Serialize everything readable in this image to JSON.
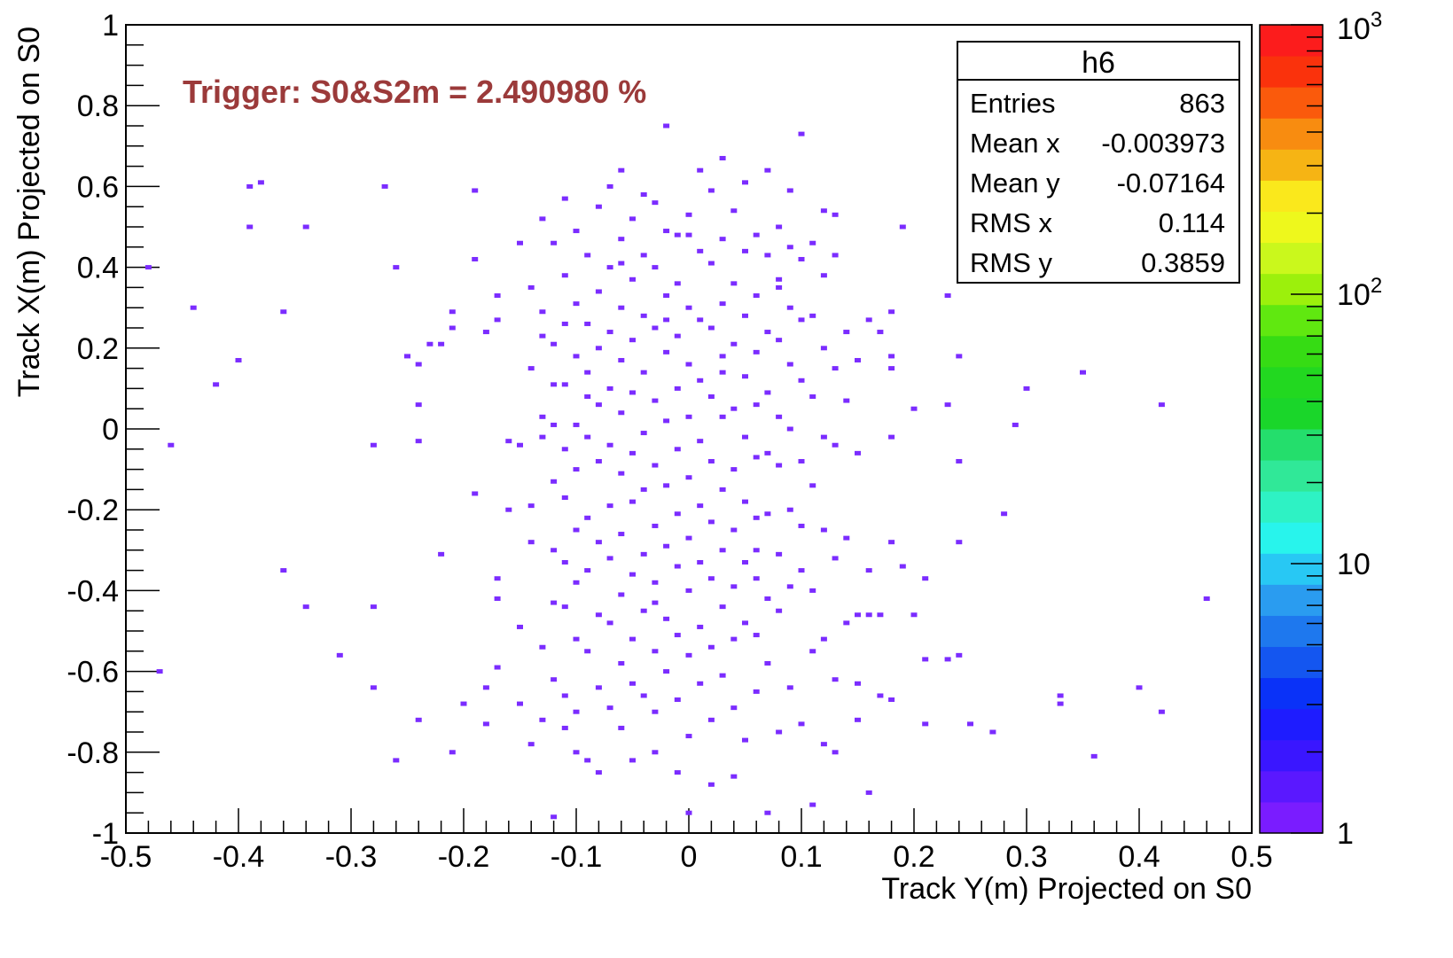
{
  "chart_data": {
    "type": "heatmap",
    "title": "",
    "xlabel": "Track Y(m) Projected on S0",
    "ylabel": "Track X(m) Projected on S0",
    "xlim": [
      -0.5,
      0.5
    ],
    "ylim": [
      -1,
      1
    ],
    "x_ticks": [
      "-0.5",
      "-0.4",
      "-0.3",
      "-0.2",
      "-0.1",
      "0",
      "0.1",
      "0.2",
      "0.3",
      "0.4",
      "0.5"
    ],
    "x_tick_values": [
      -0.5,
      -0.4,
      -0.3,
      -0.2,
      -0.1,
      0,
      0.1,
      0.2,
      0.3,
      0.4,
      0.5
    ],
    "y_ticks": [
      "-1",
      "-0.8",
      "-0.6",
      "-0.4",
      "-0.2",
      "0",
      "0.2",
      "0.4",
      "0.6",
      "0.8",
      "1"
    ],
    "y_tick_values": [
      -1,
      -0.8,
      -0.6,
      -0.4,
      -0.2,
      0,
      0.2,
      0.4,
      0.6,
      0.8,
      1
    ],
    "annotation": "Trigger: S0&S2m = 2.490980 %",
    "annotation_color": "#9b3a3a",
    "point_color": "#7b2cff",
    "colorbar": {
      "scale": "log",
      "range": [
        1,
        1000
      ],
      "labels": [
        {
          "value": 1,
          "base": "1",
          "exp": ""
        },
        {
          "value": 10,
          "base": "10",
          "exp": ""
        },
        {
          "value": 100,
          "base": "10",
          "exp": "2"
        },
        {
          "value": 1000,
          "base": "10",
          "exp": "3"
        }
      ],
      "colors": [
        "#7a1cff",
        "#5a18ff",
        "#3a16ff",
        "#1e1cff",
        "#0a32f8",
        "#1456f0",
        "#1e78ee",
        "#2a9cf0",
        "#28c8f4",
        "#28f4ec",
        "#2ef2c4",
        "#30e898",
        "#24de6c",
        "#1ad62a",
        "#22d820",
        "#36dc14",
        "#60e810",
        "#9cf00c",
        "#caf81c",
        "#eef81c",
        "#fae81c",
        "#f6b414",
        "#f88c10",
        "#fa5a0c",
        "#fa320c",
        "#fc1c1c"
      ]
    },
    "stats": {
      "title": "h6",
      "rows": [
        {
          "label": "Entries",
          "value": "863"
        },
        {
          "label": "Mean x",
          "value": "-0.003973"
        },
        {
          "label": "Mean y",
          "value": "-0.07164"
        },
        {
          "label": "RMS x",
          "value": "0.114"
        },
        {
          "label": "RMS y",
          "value": "0.3859"
        }
      ]
    },
    "points": [
      [
        -0.48,
        0.4
      ],
      [
        -0.44,
        0.3
      ],
      [
        -0.42,
        0.11
      ],
      [
        -0.46,
        -0.04
      ],
      [
        -0.47,
        -0.6
      ],
      [
        -0.4,
        0.17
      ],
      [
        -0.39,
        0.6
      ],
      [
        -0.38,
        0.61
      ],
      [
        -0.39,
        0.5
      ],
      [
        -0.36,
        0.29
      ],
      [
        -0.34,
        0.5
      ],
      [
        -0.36,
        -0.35
      ],
      [
        -0.34,
        -0.44
      ],
      [
        -0.31,
        -0.56
      ],
      [
        -0.28,
        -0.04
      ],
      [
        -0.28,
        -0.44
      ],
      [
        -0.28,
        -0.64
      ],
      [
        -0.27,
        0.6
      ],
      [
        -0.26,
        -0.82
      ],
      [
        -0.26,
        0.4
      ],
      [
        -0.25,
        0.18
      ],
      [
        -0.24,
        0.16
      ],
      [
        -0.24,
        0.06
      ],
      [
        -0.24,
        -0.03
      ],
      [
        -0.24,
        -0.72
      ],
      [
        -0.22,
        0.21
      ],
      [
        -0.21,
        0.29
      ],
      [
        -0.21,
        0.25
      ],
      [
        -0.22,
        -0.31
      ],
      [
        -0.21,
        -0.8
      ],
      [
        -0.2,
        -0.68
      ],
      [
        -0.19,
        0.59
      ],
      [
        -0.19,
        -0.16
      ],
      [
        -0.19,
        0.42
      ],
      [
        -0.18,
        -0.64
      ],
      [
        -0.18,
        -0.73
      ],
      [
        -0.18,
        0.24
      ],
      [
        -0.17,
        0.33
      ],
      [
        -0.17,
        0.27
      ],
      [
        -0.17,
        -0.37
      ],
      [
        -0.17,
        -0.42
      ],
      [
        -0.17,
        -0.59
      ],
      [
        -0.16,
        -0.03
      ],
      [
        -0.16,
        -0.2
      ],
      [
        -0.15,
        0.46
      ],
      [
        -0.15,
        -0.04
      ],
      [
        -0.15,
        -0.49
      ],
      [
        -0.15,
        -0.68
      ],
      [
        -0.14,
        0.35
      ],
      [
        -0.14,
        0.15
      ],
      [
        -0.14,
        -0.19
      ],
      [
        -0.14,
        -0.28
      ],
      [
        -0.14,
        -0.78
      ],
      [
        -0.13,
        0.52
      ],
      [
        -0.13,
        0.29
      ],
      [
        -0.13,
        0.23
      ],
      [
        -0.13,
        0.03
      ],
      [
        -0.13,
        -0.02
      ],
      [
        -0.13,
        -0.54
      ],
      [
        -0.13,
        -0.72
      ],
      [
        -0.12,
        0.46
      ],
      [
        -0.12,
        0.21
      ],
      [
        -0.12,
        0.11
      ],
      [
        -0.12,
        0.01
      ],
      [
        -0.12,
        -0.13
      ],
      [
        -0.12,
        -0.3
      ],
      [
        -0.12,
        -0.43
      ],
      [
        -0.12,
        -0.62
      ],
      [
        -0.12,
        -0.96
      ],
      [
        -0.11,
        0.57
      ],
      [
        -0.11,
        0.38
      ],
      [
        -0.11,
        0.26
      ],
      [
        -0.11,
        0.11
      ],
      [
        -0.11,
        -0.05
      ],
      [
        -0.11,
        -0.17
      ],
      [
        -0.11,
        -0.33
      ],
      [
        -0.11,
        -0.44
      ],
      [
        -0.11,
        -0.66
      ],
      [
        -0.11,
        -0.74
      ],
      [
        -0.1,
        0.49
      ],
      [
        -0.1,
        0.31
      ],
      [
        -0.1,
        0.18
      ],
      [
        -0.1,
        0.01
      ],
      [
        -0.1,
        -0.1
      ],
      [
        -0.1,
        -0.25
      ],
      [
        -0.1,
        -0.38
      ],
      [
        -0.1,
        -0.52
      ],
      [
        -0.1,
        -0.7
      ],
      [
        -0.1,
        -0.8
      ],
      [
        -0.09,
        0.43
      ],
      [
        -0.09,
        0.26
      ],
      [
        -0.09,
        0.14
      ],
      [
        -0.09,
        -0.02
      ],
      [
        -0.09,
        -0.22
      ],
      [
        -0.09,
        -0.35
      ],
      [
        -0.09,
        -0.55
      ],
      [
        -0.09,
        -0.82
      ],
      [
        -0.08,
        0.55
      ],
      [
        -0.08,
        0.34
      ],
      [
        -0.08,
        0.2
      ],
      [
        -0.08,
        0.06
      ],
      [
        -0.08,
        -0.08
      ],
      [
        -0.08,
        -0.28
      ],
      [
        -0.08,
        -0.46
      ],
      [
        -0.08,
        -0.64
      ],
      [
        -0.08,
        -0.85
      ],
      [
        -0.07,
        0.6
      ],
      [
        -0.07,
        0.4
      ],
      [
        -0.07,
        0.24
      ],
      [
        -0.07,
        0.1
      ],
      [
        -0.07,
        -0.04
      ],
      [
        -0.07,
        -0.19
      ],
      [
        -0.07,
        -0.32
      ],
      [
        -0.07,
        -0.48
      ],
      [
        -0.07,
        -0.69
      ],
      [
        -0.06,
        0.64
      ],
      [
        -0.06,
        0.47
      ],
      [
        -0.06,
        0.3
      ],
      [
        -0.06,
        0.17
      ],
      [
        -0.06,
        0.04
      ],
      [
        -0.06,
        -0.11
      ],
      [
        -0.06,
        -0.26
      ],
      [
        -0.06,
        -0.41
      ],
      [
        -0.06,
        -0.58
      ],
      [
        -0.06,
        -0.74
      ],
      [
        -0.05,
        0.52
      ],
      [
        -0.05,
        0.37
      ],
      [
        -0.05,
        0.22
      ],
      [
        -0.05,
        0.09
      ],
      [
        -0.05,
        -0.06
      ],
      [
        -0.05,
        -0.18
      ],
      [
        -0.05,
        -0.36
      ],
      [
        -0.05,
        -0.52
      ],
      [
        -0.05,
        -0.63
      ],
      [
        -0.05,
        -0.82
      ],
      [
        -0.04,
        0.58
      ],
      [
        -0.04,
        0.43
      ],
      [
        -0.04,
        0.28
      ],
      [
        -0.04,
        0.14
      ],
      [
        -0.04,
        -0.01
      ],
      [
        -0.04,
        -0.15
      ],
      [
        -0.04,
        -0.31
      ],
      [
        -0.04,
        -0.45
      ],
      [
        -0.04,
        -0.66
      ],
      [
        -0.03,
        0.56
      ],
      [
        -0.03,
        0.4
      ],
      [
        -0.03,
        0.25
      ],
      [
        -0.03,
        0.07
      ],
      [
        -0.03,
        -0.09
      ],
      [
        -0.03,
        -0.24
      ],
      [
        -0.03,
        -0.38
      ],
      [
        -0.03,
        -0.55
      ],
      [
        -0.03,
        -0.7
      ],
      [
        -0.03,
        -0.8
      ],
      [
        -0.02,
        0.75
      ],
      [
        -0.02,
        0.49
      ],
      [
        -0.02,
        0.33
      ],
      [
        -0.02,
        0.19
      ],
      [
        -0.02,
        0.02
      ],
      [
        -0.02,
        -0.14
      ],
      [
        -0.02,
        -0.29
      ],
      [
        -0.02,
        -0.47
      ],
      [
        -0.02,
        -0.6
      ],
      [
        -0.01,
        0.48
      ],
      [
        -0.01,
        0.36
      ],
      [
        -0.01,
        0.23
      ],
      [
        -0.01,
        0.1
      ],
      [
        -0.01,
        -0.05
      ],
      [
        -0.01,
        -0.21
      ],
      [
        -0.01,
        -0.34
      ],
      [
        -0.01,
        -0.51
      ],
      [
        -0.01,
        -0.67
      ],
      [
        -0.01,
        -0.85
      ],
      [
        0.0,
        0.53
      ],
      [
        0.0,
        0.3
      ],
      [
        0.0,
        0.16
      ],
      [
        0.0,
        0.03
      ],
      [
        0.0,
        -0.12
      ],
      [
        0.0,
        -0.27
      ],
      [
        0.0,
        -0.4
      ],
      [
        0.0,
        -0.56
      ],
      [
        0.0,
        -0.76
      ],
      [
        0.0,
        -0.95
      ],
      [
        0.01,
        0.64
      ],
      [
        0.01,
        0.44
      ],
      [
        0.01,
        0.27
      ],
      [
        0.01,
        0.12
      ],
      [
        0.01,
        -0.03
      ],
      [
        0.01,
        -0.19
      ],
      [
        0.01,
        -0.33
      ],
      [
        0.01,
        -0.49
      ],
      [
        0.01,
        -0.63
      ],
      [
        0.02,
        0.59
      ],
      [
        0.02,
        0.41
      ],
      [
        0.02,
        0.25
      ],
      [
        0.02,
        0.08
      ],
      [
        0.02,
        -0.08
      ],
      [
        0.02,
        -0.23
      ],
      [
        0.02,
        -0.37
      ],
      [
        0.02,
        -0.54
      ],
      [
        0.02,
        -0.72
      ],
      [
        0.02,
        -0.88
      ],
      [
        0.03,
        0.67
      ],
      [
        0.03,
        0.47
      ],
      [
        0.03,
        0.31
      ],
      [
        0.03,
        0.18
      ],
      [
        0.03,
        0.03
      ],
      [
        0.03,
        -0.15
      ],
      [
        0.03,
        -0.3
      ],
      [
        0.03,
        -0.44
      ],
      [
        0.03,
        -0.61
      ],
      [
        0.04,
        0.54
      ],
      [
        0.04,
        0.36
      ],
      [
        0.04,
        0.21
      ],
      [
        0.04,
        0.05
      ],
      [
        0.04,
        -0.1
      ],
      [
        0.04,
        -0.25
      ],
      [
        0.04,
        -0.39
      ],
      [
        0.04,
        -0.52
      ],
      [
        0.04,
        -0.69
      ],
      [
        0.04,
        -0.86
      ],
      [
        0.05,
        0.61
      ],
      [
        0.05,
        0.44
      ],
      [
        0.05,
        0.28
      ],
      [
        0.05,
        0.13
      ],
      [
        0.05,
        -0.02
      ],
      [
        0.05,
        -0.18
      ],
      [
        0.05,
        -0.33
      ],
      [
        0.05,
        -0.48
      ],
      [
        0.05,
        -0.77
      ],
      [
        0.06,
        0.48
      ],
      [
        0.06,
        0.33
      ],
      [
        0.06,
        0.19
      ],
      [
        0.06,
        0.06
      ],
      [
        0.06,
        -0.07
      ],
      [
        0.06,
        -0.22
      ],
      [
        0.06,
        -0.37
      ],
      [
        0.06,
        -0.51
      ],
      [
        0.06,
        -0.65
      ],
      [
        0.07,
        0.64
      ],
      [
        0.07,
        0.43
      ],
      [
        0.07,
        0.24
      ],
      [
        0.07,
        0.09
      ],
      [
        0.07,
        -0.06
      ],
      [
        0.07,
        -0.21
      ],
      [
        0.07,
        -0.42
      ],
      [
        0.07,
        -0.58
      ],
      [
        0.07,
        -0.95
      ],
      [
        0.08,
        0.5
      ],
      [
        0.08,
        0.35
      ],
      [
        0.08,
        0.22
      ],
      [
        0.08,
        0.03
      ],
      [
        0.08,
        -0.09
      ],
      [
        0.08,
        -0.31
      ],
      [
        0.08,
        -0.45
      ],
      [
        0.08,
        -0.75
      ],
      [
        0.09,
        0.59
      ],
      [
        0.09,
        0.45
      ],
      [
        0.09,
        0.3
      ],
      [
        0.09,
        0.16
      ],
      [
        0.09,
        0.0
      ],
      [
        0.09,
        -0.2
      ],
      [
        0.09,
        -0.39
      ],
      [
        0.09,
        -0.64
      ],
      [
        0.1,
        0.73
      ],
      [
        0.1,
        0.42
      ],
      [
        0.1,
        0.27
      ],
      [
        0.1,
        0.12
      ],
      [
        0.1,
        -0.08
      ],
      [
        0.1,
        -0.24
      ],
      [
        0.1,
        -0.35
      ],
      [
        0.1,
        -0.73
      ],
      [
        0.11,
        0.46
      ],
      [
        0.11,
        0.28
      ],
      [
        0.11,
        0.08
      ],
      [
        0.11,
        -0.14
      ],
      [
        0.11,
        -0.4
      ],
      [
        0.11,
        -0.55
      ],
      [
        0.11,
        -0.93
      ],
      [
        0.12,
        0.54
      ],
      [
        0.12,
        0.38
      ],
      [
        0.12,
        0.2
      ],
      [
        0.12,
        -0.02
      ],
      [
        0.12,
        -0.25
      ],
      [
        0.12,
        -0.52
      ],
      [
        0.12,
        -0.78
      ],
      [
        0.13,
        0.53
      ],
      [
        0.13,
        0.43
      ],
      [
        0.13,
        0.15
      ],
      [
        0.13,
        -0.04
      ],
      [
        0.13,
        -0.32
      ],
      [
        0.13,
        -0.62
      ],
      [
        0.13,
        -0.8
      ],
      [
        0.14,
        0.24
      ],
      [
        0.14,
        0.07
      ],
      [
        0.14,
        -0.27
      ],
      [
        0.14,
        -0.48
      ],
      [
        0.15,
        0.17
      ],
      [
        0.15,
        -0.06
      ],
      [
        0.15,
        -0.46
      ],
      [
        0.15,
        -0.63
      ],
      [
        0.16,
        0.27
      ],
      [
        0.16,
        -0.35
      ],
      [
        0.16,
        -0.46
      ],
      [
        0.16,
        -0.9
      ],
      [
        0.17,
        0.24
      ],
      [
        0.17,
        -0.46
      ],
      [
        0.17,
        -0.66
      ],
      [
        0.18,
        0.29
      ],
      [
        0.18,
        0.18
      ],
      [
        0.18,
        0.15
      ],
      [
        0.18,
        -0.02
      ],
      [
        0.18,
        -0.28
      ],
      [
        0.18,
        -0.67
      ],
      [
        0.19,
        0.5
      ],
      [
        0.19,
        -0.34
      ],
      [
        0.2,
        -0.46
      ],
      [
        0.2,
        0.05
      ],
      [
        0.21,
        -0.37
      ],
      [
        0.21,
        -0.57
      ],
      [
        0.21,
        -0.73
      ],
      [
        0.23,
        0.06
      ],
      [
        0.23,
        -0.57
      ],
      [
        0.23,
        0.33
      ],
      [
        0.24,
        0.18
      ],
      [
        0.24,
        -0.08
      ],
      [
        0.24,
        -0.28
      ],
      [
        0.24,
        -0.56
      ],
      [
        0.25,
        -0.73
      ],
      [
        0.27,
        -0.75
      ],
      [
        0.28,
        -0.21
      ],
      [
        0.29,
        0.01
      ],
      [
        0.3,
        0.1
      ],
      [
        0.33,
        -0.66
      ],
      [
        0.33,
        -0.68
      ],
      [
        0.35,
        0.14
      ],
      [
        0.36,
        -0.81
      ],
      [
        0.4,
        -0.64
      ],
      [
        0.42,
        0.06
      ],
      [
        0.42,
        -0.7
      ],
      [
        0.46,
        -0.42
      ],
      [
        0.25,
        0.38
      ],
      [
        0.15,
        -0.72
      ],
      [
        -0.23,
        0.21
      ],
      [
        -0.02,
        0.27
      ],
      [
        0.03,
        0.14
      ],
      [
        -0.06,
        0.41
      ],
      [
        0.06,
        -0.3
      ],
      [
        0.0,
        0.48
      ],
      [
        -0.09,
        0.08
      ],
      [
        0.08,
        0.37
      ],
      [
        -0.03,
        -0.43
      ]
    ]
  }
}
